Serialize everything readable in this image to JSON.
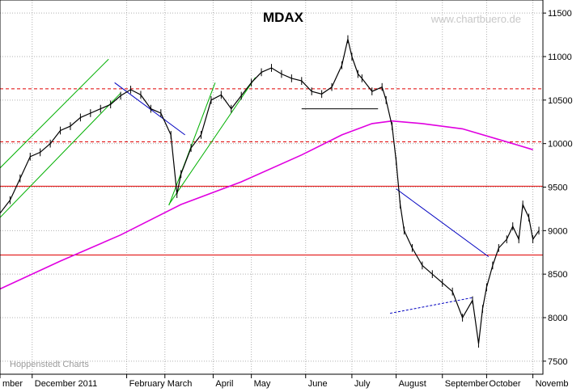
{
  "chart_data": {
    "type": "line",
    "title": "MDAX",
    "watermark": "www.chartbuero.de",
    "source": "Hoppenstedt Charts",
    "ylim": [
      7350,
      11650
    ],
    "y_ticks": [
      7500,
      8000,
      8500,
      9000,
      9500,
      10000,
      10500,
      11000,
      11500
    ],
    "x_labels": [
      {
        "label": "mber",
        "t": 0
      },
      {
        "label": "December 2011",
        "t": 16
      },
      {
        "label": "February",
        "t": 63
      },
      {
        "label": "March",
        "t": 82
      },
      {
        "label": "April",
        "t": 106
      },
      {
        "label": "May",
        "t": 125
      },
      {
        "label": "June",
        "t": 152
      },
      {
        "label": "July",
        "t": 175
      },
      {
        "label": "August",
        "t": 197
      },
      {
        "label": "September",
        "t": 220
      },
      {
        "label": "October",
        "t": 242
      },
      {
        "label": "Novemb",
        "t": 265
      }
    ],
    "grid": true,
    "series": [
      {
        "role": "price",
        "color": "#000000",
        "x": [
          0,
          5,
          10,
          15,
          20,
          25,
          30,
          35,
          40,
          45,
          50,
          55,
          60,
          65,
          70,
          75,
          80,
          85,
          88,
          90,
          95,
          100,
          105,
          110,
          115,
          120,
          125,
          130,
          135,
          140,
          145,
          150,
          155,
          160,
          165,
          170,
          173,
          175,
          178,
          180,
          185,
          190,
          192,
          195,
          197,
          199,
          201,
          205,
          210,
          215,
          220,
          225,
          230,
          235,
          238,
          240,
          242,
          245,
          248,
          252,
          255,
          258,
          260,
          263,
          265,
          268
        ],
        "values": [
          9200,
          9350,
          9600,
          9850,
          9900,
          10000,
          10150,
          10200,
          10300,
          10350,
          10400,
          10450,
          10550,
          10620,
          10560,
          10400,
          10350,
          10100,
          9420,
          9650,
          9950,
          10100,
          10500,
          10560,
          10400,
          10550,
          10700,
          10820,
          10870,
          10800,
          10750,
          10720,
          10600,
          10570,
          10650,
          10900,
          11200,
          11000,
          10800,
          10750,
          10600,
          10650,
          10500,
          10200,
          9800,
          9300,
          9000,
          8800,
          8600,
          8500,
          8400,
          8300,
          8000,
          8200,
          7700,
          8100,
          8350,
          8600,
          8800,
          8900,
          9050,
          8900,
          9300,
          9150,
          8900,
          9000
        ]
      },
      {
        "role": "moving-average",
        "color": "#e000e0",
        "x": [
          0,
          30,
          60,
          90,
          120,
          150,
          170,
          185,
          195,
          210,
          230,
          255,
          265
        ],
        "values": [
          8330,
          8650,
          8950,
          9300,
          9560,
          9870,
          10100,
          10230,
          10260,
          10230,
          10170,
          10000,
          9930
        ]
      }
    ],
    "horizontal_lines": [
      {
        "value": 10630,
        "style": "dashed",
        "color": "#e00000"
      },
      {
        "value": 10020,
        "style": "dashed",
        "color": "#e00000"
      },
      {
        "value": 9510,
        "style": "solid",
        "color": "#e00000"
      },
      {
        "value": 8720,
        "style": "solid",
        "color": "#e00000"
      }
    ],
    "trend_lines": [
      {
        "color": "#00b000",
        "x": [
          -3,
          54
        ],
        "values": [
          9650,
          10970
        ]
      },
      {
        "color": "#00b000",
        "x": [
          0,
          60
        ],
        "values": [
          9150,
          10580
        ]
      },
      {
        "color": "#00b000",
        "x": [
          84,
          107
        ],
        "values": [
          9290,
          10700
        ]
      },
      {
        "color": "#00b000",
        "x": [
          84,
          127
        ],
        "values": [
          9300,
          10760
        ]
      },
      {
        "color": "#0000c0",
        "x": [
          57,
          92
        ],
        "values": [
          10700,
          10100
        ]
      },
      {
        "color": "#000000",
        "x": [
          150,
          188
        ],
        "values": [
          10400,
          10400
        ]
      },
      {
        "color": "#0000c0",
        "x": [
          197,
          243
        ],
        "values": [
          9480,
          8700
        ]
      },
      {
        "color": "#0000c0",
        "x": [
          194,
          235
        ],
        "values": [
          8050,
          8230
        ],
        "style": "dashed"
      }
    ]
  }
}
